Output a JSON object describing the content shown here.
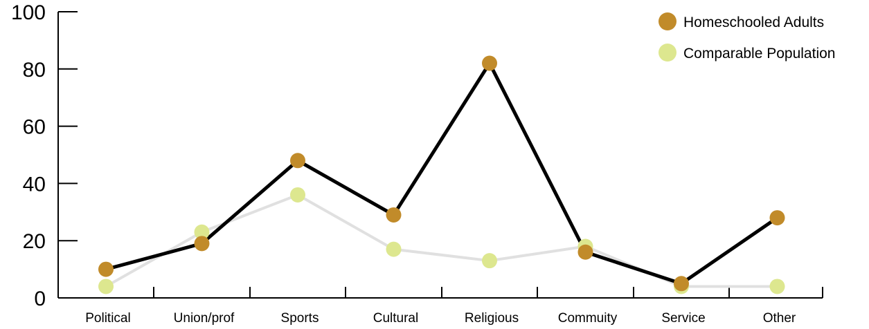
{
  "chart_data": {
    "type": "line",
    "categories": [
      "Political",
      "Union/prof",
      "Sports",
      "Cultural",
      "Religious",
      "Commuity",
      "Service",
      "Other"
    ],
    "series": [
      {
        "name": "Homeschooled Adults",
        "values": [
          10,
          19,
          48,
          29,
          82,
          16,
          5,
          28
        ],
        "color": "#c18b2a",
        "line_color": "#000000"
      },
      {
        "name": "Comparable Population",
        "values": [
          4,
          23,
          36,
          17,
          13,
          18,
          4,
          4
        ],
        "color": "#dde78f",
        "line_color": "#e0e0e0"
      }
    ],
    "y_ticks": [
      "0",
      "20",
      "40",
      "60",
      "80",
      "100"
    ],
    "ylim": [
      0,
      100
    ],
    "grid": false,
    "legend_position": "top-right"
  }
}
